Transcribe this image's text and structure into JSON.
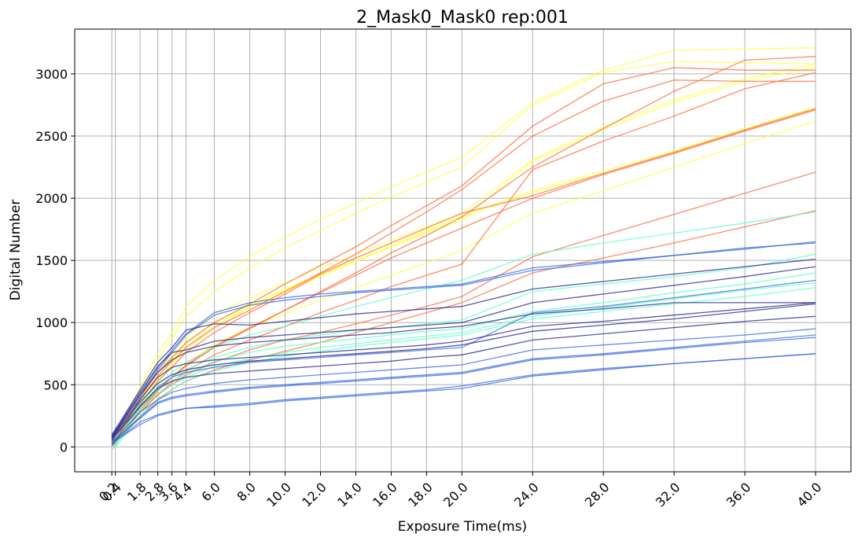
{
  "chart_data": {
    "type": "line",
    "title": "2_Mask0_Mask0 rep:001",
    "xlabel": "Exposure Time(ms)",
    "ylabel": "Digital Number",
    "xlim": [
      -1.9,
      42.0
    ],
    "ylim": [
      -200,
      3360
    ],
    "grid": true,
    "legend": "none",
    "x": [
      0.2,
      0.4,
      1.8,
      2.8,
      3.6,
      4.4,
      6.0,
      8.0,
      10.0,
      12.0,
      14.0,
      16.0,
      18.0,
      20.0,
      24.0,
      28.0,
      32.0,
      36.0,
      40.0
    ],
    "xticks": [
      0.2,
      0.4,
      1.8,
      2.8,
      3.6,
      4.4,
      6.0,
      8.0,
      10.0,
      12.0,
      14.0,
      16.0,
      18.0,
      20.0,
      24.0,
      28.0,
      32.0,
      36.0,
      40.0
    ],
    "xtick_labels": [
      "0.2",
      "0.4",
      "1.8",
      "2.8",
      "3.6",
      "4.4",
      "6.0",
      "8.0",
      "10.0",
      "12.0",
      "14.0",
      "16.0",
      "18.0",
      "20.0",
      "24.0",
      "28.0",
      "32.0",
      "36.0",
      "40.0"
    ],
    "yticks": [
      0,
      500,
      1000,
      1500,
      2000,
      2500,
      3000
    ],
    "ytick_labels": [
      "0",
      "500",
      "1000",
      "1500",
      "2000",
      "2500",
      "3000"
    ],
    "series": [
      {
        "color": "#ffff44",
        "values": [
          50,
          90,
          480,
          750,
          920,
          1130,
          1340,
          1530,
          1690,
          1830,
          1960,
          2090,
          2210,
          2330,
          2770,
          3030,
          3190,
          3200,
          3210
        ]
      },
      {
        "color": "#ffff44",
        "values": [
          40,
          80,
          430,
          700,
          870,
          1050,
          1250,
          1440,
          1600,
          1740,
          1880,
          2010,
          2130,
          2250,
          2750,
          3010,
          3100,
          3090,
          3080
        ]
      },
      {
        "color": "#ffff44",
        "values": [
          30,
          70,
          380,
          600,
          740,
          880,
          1060,
          1200,
          1320,
          1440,
          1550,
          1660,
          1770,
          1880,
          2310,
          2570,
          2790,
          2960,
          3080
        ]
      },
      {
        "color": "#ffff44",
        "values": [
          30,
          70,
          360,
          570,
          700,
          830,
          1000,
          1140,
          1270,
          1390,
          1500,
          1610,
          1720,
          1820,
          2300,
          2550,
          2770,
          2940,
          3050
        ]
      },
      {
        "color": "#ffff44",
        "values": [
          30,
          60,
          340,
          540,
          670,
          800,
          980,
          1130,
          1260,
          1380,
          1500,
          1620,
          1740,
          1860,
          2060,
          2220,
          2380,
          2560,
          2730
        ]
      },
      {
        "color": "#ffff44",
        "values": [
          30,
          60,
          320,
          520,
          650,
          780,
          960,
          1120,
          1250,
          1370,
          1490,
          1610,
          1730,
          1840,
          2050,
          2200,
          2370,
          2550,
          2720
        ]
      },
      {
        "color": "#ffff44",
        "values": [
          20,
          50,
          280,
          450,
          560,
          670,
          830,
          960,
          1070,
          1180,
          1280,
          1380,
          1480,
          1580,
          1880,
          2060,
          2250,
          2440,
          2620
        ]
      },
      {
        "color": "#ff6633",
        "values": [
          20,
          50,
          400,
          600,
          720,
          840,
          1000,
          1150,
          1310,
          1460,
          1610,
          1780,
          1940,
          2100,
          2580,
          2920,
          3050,
          3030,
          3030
        ]
      },
      {
        "color": "#ff6633",
        "values": [
          20,
          50,
          380,
          570,
          690,
          800,
          960,
          1100,
          1250,
          1400,
          1550,
          1720,
          1890,
          2070,
          2500,
          2780,
          2950,
          2940,
          2940
        ]
      },
      {
        "color": "#ff6633",
        "values": [
          10,
          40,
          300,
          450,
          560,
          660,
          810,
          960,
          1100,
          1250,
          1400,
          1560,
          1700,
          1850,
          2250,
          2560,
          2860,
          3110,
          3140
        ]
      },
      {
        "color": "#ff6633",
        "values": [
          10,
          40,
          340,
          530,
          640,
          760,
          920,
          1080,
          1230,
          1390,
          1520,
          1640,
          1760,
          1880,
          2020,
          2200,
          2370,
          2550,
          2720
        ]
      },
      {
        "color": "#ff6633",
        "values": [
          10,
          40,
          300,
          460,
          560,
          650,
          800,
          950,
          1100,
          1240,
          1380,
          1520,
          1640,
          1760,
          2000,
          2190,
          2360,
          2540,
          2710
        ]
      },
      {
        "color": "#ff6633",
        "values": [
          10,
          40,
          280,
          420,
          520,
          610,
          740,
          860,
          970,
          1080,
          1180,
          1290,
          1380,
          1470,
          2230,
          2460,
          2660,
          2880,
          3010
        ]
      },
      {
        "color": "#ff6633",
        "values": [
          0,
          30,
          280,
          420,
          500,
          580,
          680,
          780,
          860,
          920,
          990,
          1060,
          1130,
          1210,
          1530,
          1700,
          1870,
          2040,
          2210
        ]
      },
      {
        "color": "#ff6633",
        "values": [
          0,
          30,
          250,
          380,
          460,
          530,
          620,
          700,
          770,
          840,
          920,
          1000,
          1080,
          1160,
          1400,
          1520,
          1640,
          1770,
          1900
        ]
      },
      {
        "color": "#55ffcc",
        "values": [
          0,
          20,
          350,
          510,
          600,
          680,
          800,
          900,
          970,
          1050,
          1130,
          1200,
          1270,
          1340,
          1550,
          1640,
          1720,
          1800,
          1890
        ]
      },
      {
        "color": "#55ffcc",
        "values": [
          0,
          20,
          330,
          480,
          560,
          620,
          720,
          800,
          860,
          900,
          940,
          960,
          990,
          1020,
          1250,
          1310,
          1370,
          1440,
          1550
        ]
      },
      {
        "color": "#55ffcc",
        "values": [
          0,
          20,
          320,
          460,
          530,
          590,
          690,
          760,
          810,
          840,
          870,
          900,
          930,
          950,
          1090,
          1160,
          1240,
          1310,
          1400
        ]
      },
      {
        "color": "#55ffcc",
        "values": [
          0,
          10,
          300,
          430,
          500,
          560,
          650,
          710,
          760,
          800,
          830,
          860,
          890,
          920,
          1050,
          1120,
          1190,
          1260,
          1320
        ]
      },
      {
        "color": "#55ffcc",
        "values": [
          -20,
          0,
          250,
          390,
          460,
          530,
          610,
          680,
          730,
          770,
          810,
          840,
          870,
          900,
          1030,
          1090,
          1150,
          1210,
          1280
        ]
      },
      {
        "color": "#3366dd",
        "values": [
          80,
          120,
          420,
          640,
          780,
          910,
          1080,
          1160,
          1200,
          1230,
          1250,
          1270,
          1290,
          1310,
          1440,
          1490,
          1540,
          1590,
          1650
        ]
      },
      {
        "color": "#3366dd",
        "values": [
          80,
          120,
          400,
          620,
          760,
          900,
          1060,
          1140,
          1180,
          1210,
          1240,
          1260,
          1280,
          1300,
          1420,
          1480,
          1540,
          1600,
          1640
        ]
      },
      {
        "color": "#3366dd",
        "values": [
          50,
          90,
          320,
          480,
          560,
          600,
          640,
          680,
          700,
          720,
          740,
          760,
          780,
          800,
          1080,
          1130,
          1200,
          1270,
          1340
        ]
      },
      {
        "color": "#3366dd",
        "values": [
          40,
          70,
          280,
          380,
          440,
          470,
          510,
          540,
          560,
          580,
          600,
          620,
          640,
          660,
          780,
          820,
          860,
          900,
          950
        ]
      },
      {
        "color": "#3366dd",
        "values": [
          30,
          60,
          240,
          360,
          400,
          420,
          450,
          480,
          500,
          520,
          540,
          560,
          580,
          600,
          710,
          750,
          800,
          850,
          900
        ]
      },
      {
        "color": "#3366dd",
        "values": [
          30,
          60,
          230,
          350,
          390,
          410,
          440,
          470,
          490,
          510,
          530,
          550,
          570,
          590,
          700,
          740,
          790,
          840,
          880
        ]
      },
      {
        "color": "#3366dd",
        "values": [
          20,
          50,
          200,
          260,
          290,
          310,
          330,
          350,
          380,
          400,
          420,
          440,
          460,
          490,
          580,
          630,
          670,
          710,
          750
        ]
      },
      {
        "color": "#3366dd",
        "values": [
          20,
          50,
          180,
          250,
          280,
          310,
          320,
          340,
          370,
          390,
          410,
          430,
          450,
          470,
          570,
          620,
          670,
          710,
          750
        ]
      },
      {
        "color": "#222288",
        "values": [
          100,
          140,
          460,
          680,
          800,
          940,
          990,
          980,
          1010,
          1040,
          1070,
          1090,
          1110,
          1130,
          1270,
          1330,
          1390,
          1450,
          1510
        ]
      },
      {
        "color": "#222288",
        "values": [
          90,
          130,
          440,
          650,
          760,
          780,
          850,
          880,
          900,
          920,
          940,
          960,
          980,
          1000,
          1160,
          1230,
          1300,
          1370,
          1450
        ]
      },
      {
        "color": "#222288",
        "values": [
          80,
          120,
          420,
          600,
          700,
          760,
          810,
          840,
          860,
          880,
          900,
          920,
          950,
          970,
          1070,
          1110,
          1160,
          1160,
          1160
        ]
      },
      {
        "color": "#222288",
        "values": [
          70,
          110,
          380,
          560,
          640,
          670,
          700,
          720,
          740,
          760,
          780,
          800,
          820,
          850,
          970,
          1010,
          1060,
          1110,
          1160
        ]
      },
      {
        "color": "#222288",
        "values": [
          60,
          100,
          360,
          510,
          580,
          620,
          660,
          690,
          710,
          730,
          750,
          770,
          790,
          820,
          930,
          980,
          1030,
          1090,
          1150
        ]
      },
      {
        "color": "#222288",
        "values": [
          50,
          90,
          330,
          470,
          530,
          560,
          590,
          610,
          630,
          650,
          670,
          690,
          720,
          740,
          860,
          910,
          960,
          1010,
          1050
        ]
      }
    ]
  }
}
